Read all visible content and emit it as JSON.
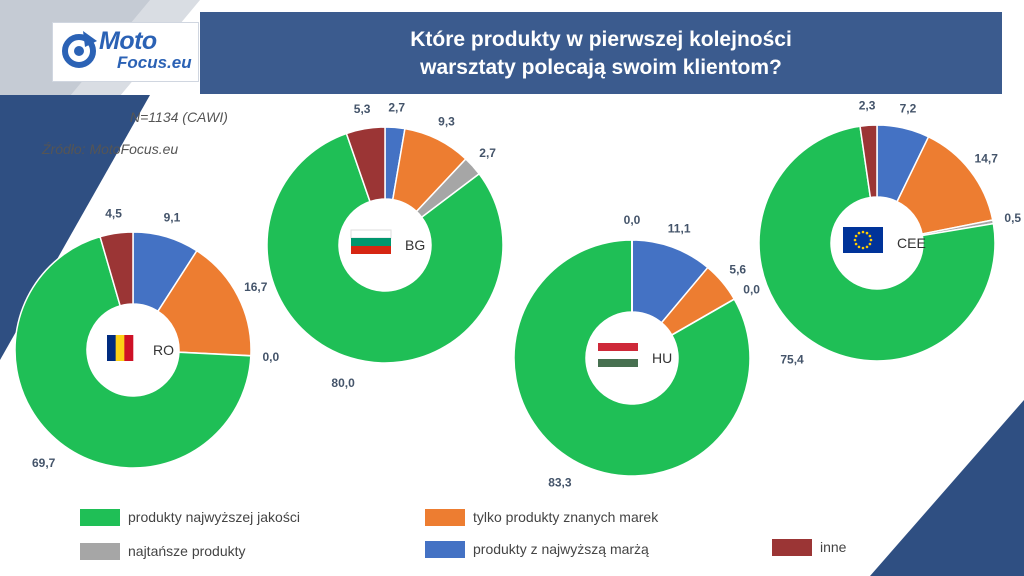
{
  "header": {
    "title_line1": "Które produkty w pierwszej kolejności",
    "title_line2": "warsztaty polecają swoim klientom?"
  },
  "logo": {
    "line1": "Moto",
    "line2": "Focus.eu"
  },
  "meta": {
    "sample": "N=1134 (CAWI)",
    "source": "Źródło: MotoFocus.eu"
  },
  "colors": {
    "najwyzszej_jakosci": "#1fbf56",
    "najtansze": "#a6a6a6",
    "znanych_marek": "#ed7d31",
    "najwyzsza_marza": "#4472c4",
    "inne": "#9b3535"
  },
  "legend": [
    {
      "key": "najwyzszej_jakosci",
      "label": "produkty najwyższej jakości"
    },
    {
      "key": "znanych_marek",
      "label": "tylko produkty znanych marek"
    },
    {
      "key": "najtansze",
      "label": "najtańsze produkty"
    },
    {
      "key": "najwyzsza_marza",
      "label": "produkty z najwyższą marżą"
    },
    {
      "key": "inne",
      "label": "inne"
    }
  ],
  "chart_data": [
    {
      "type": "pie",
      "country": "RO",
      "flag": "romania-flag-icon",
      "slices": [
        {
          "key": "najwyzsza_marza",
          "value": 9.1,
          "label": "9,1"
        },
        {
          "key": "znanych_marek",
          "value": 16.7,
          "label": "16,7"
        },
        {
          "key": "najtansze",
          "value": 0.0,
          "label": "0,0"
        },
        {
          "key": "najwyzszej_jakosci",
          "value": 69.7,
          "label": "69,7"
        },
        {
          "key": "inne",
          "value": 4.5,
          "label": "4,5"
        }
      ]
    },
    {
      "type": "pie",
      "country": "BG",
      "flag": "bulgaria-flag-icon",
      "slices": [
        {
          "key": "najwyzsza_marza",
          "value": 2.7,
          "label": "2,7"
        },
        {
          "key": "znanych_marek",
          "value": 9.3,
          "label": "9,3"
        },
        {
          "key": "najtansze",
          "value": 2.7,
          "label": "2,7"
        },
        {
          "key": "najwyzszej_jakosci",
          "value": 80.0,
          "label": "80,0"
        },
        {
          "key": "inne",
          "value": 5.3,
          "label": "5,3"
        }
      ]
    },
    {
      "type": "pie",
      "country": "HU",
      "flag": "hungary-flag-icon",
      "slices": [
        {
          "key": "najwyzsza_marza",
          "value": 11.1,
          "label": "11,1"
        },
        {
          "key": "znanych_marek",
          "value": 5.6,
          "label": "5,6"
        },
        {
          "key": "najtansze",
          "value": 0.0,
          "label": "0,0"
        },
        {
          "key": "najwyzszej_jakosci",
          "value": 83.3,
          "label": "83,3"
        },
        {
          "key": "inne",
          "value": 0.0,
          "label": "0,0"
        }
      ]
    },
    {
      "type": "pie",
      "country": "CEE",
      "flag": "eu-flag-icon",
      "slices": [
        {
          "key": "najwyzsza_marza",
          "value": 7.2,
          "label": "7,2"
        },
        {
          "key": "znanych_marek",
          "value": 14.7,
          "label": "14,7"
        },
        {
          "key": "najtansze",
          "value": 0.5,
          "label": "0,5"
        },
        {
          "key": "najwyzszej_jakosci",
          "value": 75.4,
          "label": "75,4"
        },
        {
          "key": "inne",
          "value": 2.3,
          "label": "2,3"
        }
      ]
    }
  ]
}
